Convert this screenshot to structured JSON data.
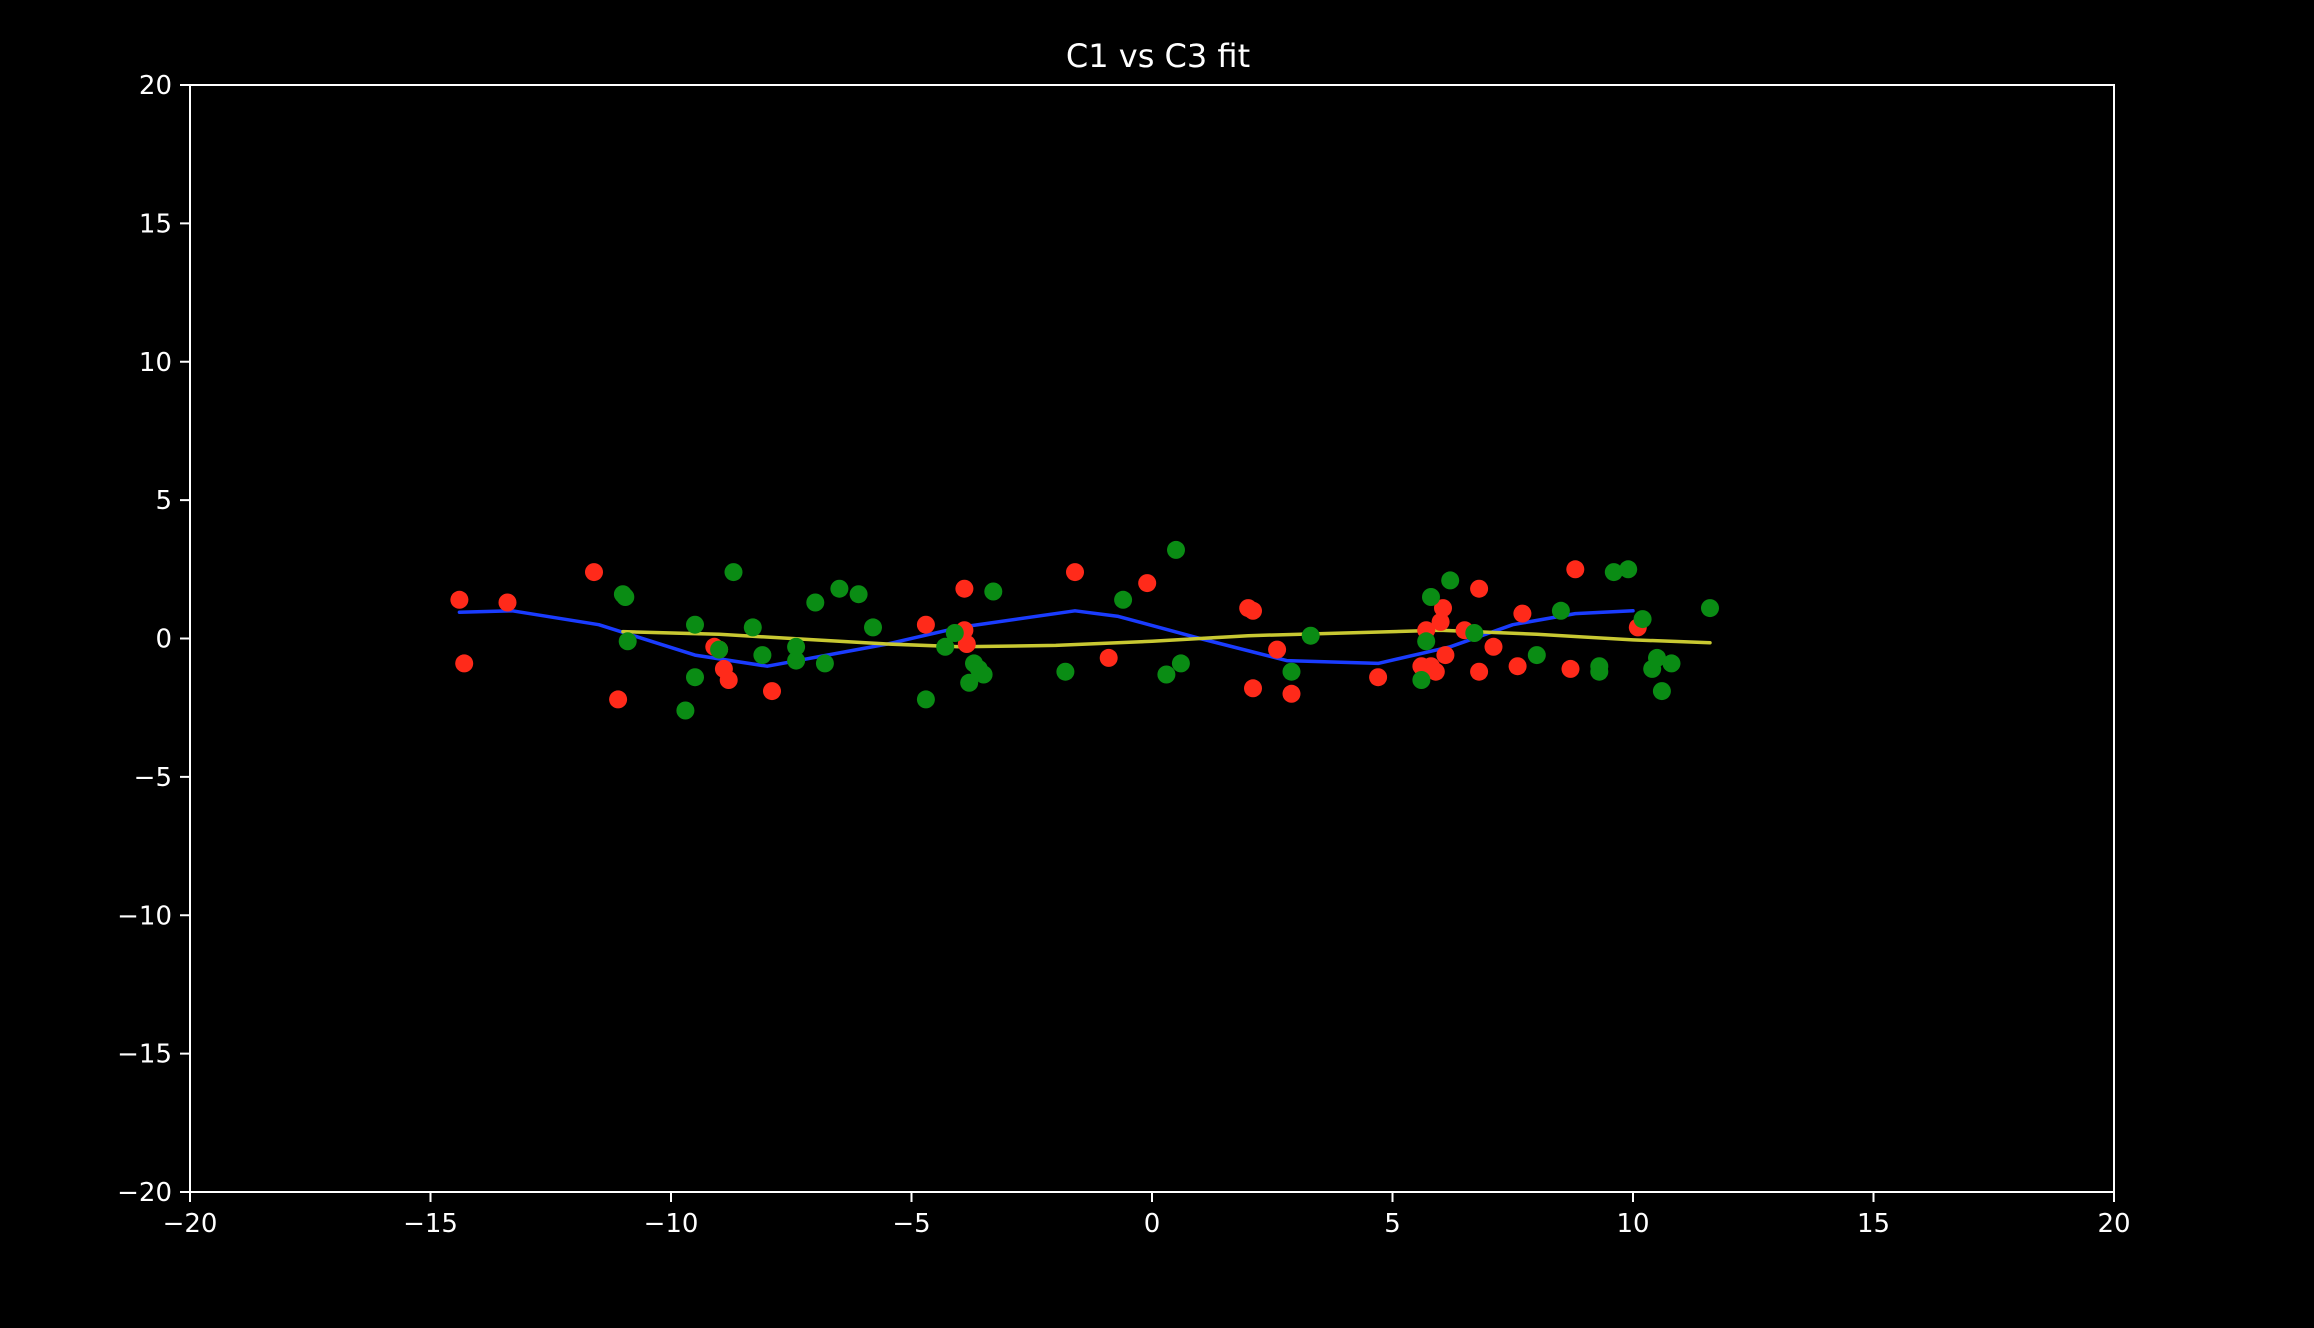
{
  "chart_data": {
    "type": "scatter",
    "title": "C1 vs C3 fit",
    "xlabel": "",
    "ylabel": "",
    "xlim": [
      -20,
      20
    ],
    "ylim": [
      -20,
      20
    ],
    "x_ticks": [
      -20,
      -15,
      -10,
      -5,
      0,
      5,
      10,
      15,
      20
    ],
    "y_ticks": [
      -20,
      -15,
      -10,
      -5,
      0,
      5,
      10,
      15,
      20
    ],
    "grid": false,
    "background": "#000000",
    "axis_color": "#ffffff",
    "series": [
      {
        "kind": "scatter",
        "color": "#ff2a1a",
        "points": [
          [
            -14.4,
            1.4
          ],
          [
            -14.3,
            -0.9
          ],
          [
            -13.4,
            1.3
          ],
          [
            -11.6,
            2.4
          ],
          [
            -11.1,
            -2.2
          ],
          [
            -9.1,
            -0.3
          ],
          [
            -9.0,
            -0.4
          ],
          [
            -8.9,
            -1.1
          ],
          [
            -8.8,
            -1.5
          ],
          [
            -7.9,
            -1.9
          ],
          [
            -4.7,
            0.5
          ],
          [
            -3.9,
            1.8
          ],
          [
            -3.9,
            0.3
          ],
          [
            -3.85,
            -0.2
          ],
          [
            -1.6,
            2.4
          ],
          [
            -0.9,
            -0.7
          ],
          [
            -0.1,
            2.0
          ],
          [
            2.0,
            1.1
          ],
          [
            2.1,
            1.0
          ],
          [
            2.1,
            -1.8
          ],
          [
            2.6,
            -0.4
          ],
          [
            2.9,
            -2.0
          ],
          [
            4.7,
            -1.4
          ],
          [
            5.6,
            -1.0
          ],
          [
            5.7,
            0.3
          ],
          [
            5.8,
            -1.0
          ],
          [
            5.9,
            -1.2
          ],
          [
            6.0,
            0.6
          ],
          [
            6.05,
            1.1
          ],
          [
            6.1,
            -0.6
          ],
          [
            6.5,
            0.3
          ],
          [
            6.8,
            -1.2
          ],
          [
            6.8,
            1.8
          ],
          [
            7.1,
            -0.3
          ],
          [
            7.6,
            -1.0
          ],
          [
            7.7,
            0.9
          ],
          [
            8.7,
            -1.1
          ],
          [
            8.8,
            2.5
          ],
          [
            10.1,
            0.4
          ]
        ]
      },
      {
        "kind": "scatter",
        "color": "#0a8c14",
        "points": [
          [
            -11.0,
            1.6
          ],
          [
            -10.95,
            1.5
          ],
          [
            -10.9,
            -0.1
          ],
          [
            -9.7,
            -2.6
          ],
          [
            -9.5,
            0.5
          ],
          [
            -9.5,
            -1.4
          ],
          [
            -9.0,
            -0.4
          ],
          [
            -8.7,
            2.4
          ],
          [
            -8.3,
            0.4
          ],
          [
            -8.1,
            -0.6
          ],
          [
            -7.4,
            -0.3
          ],
          [
            -7.4,
            -0.8
          ],
          [
            -7.0,
            1.3
          ],
          [
            -6.8,
            -0.9
          ],
          [
            -6.5,
            1.8
          ],
          [
            -6.1,
            1.6
          ],
          [
            -5.8,
            0.4
          ],
          [
            -4.7,
            -2.2
          ],
          [
            -4.3,
            -0.3
          ],
          [
            -4.1,
            0.2
          ],
          [
            -3.8,
            -1.6
          ],
          [
            -3.7,
            -0.9
          ],
          [
            -3.6,
            -1.1
          ],
          [
            -3.5,
            -1.3
          ],
          [
            -3.3,
            1.7
          ],
          [
            -1.8,
            -1.2
          ],
          [
            -0.6,
            1.4
          ],
          [
            0.3,
            -1.3
          ],
          [
            0.5,
            3.2
          ],
          [
            0.6,
            -0.9
          ],
          [
            2.9,
            -1.2
          ],
          [
            3.3,
            0.1
          ],
          [
            5.6,
            -1.5
          ],
          [
            5.7,
            -0.1
          ],
          [
            5.8,
            1.5
          ],
          [
            6.2,
            2.1
          ],
          [
            6.7,
            0.2
          ],
          [
            8.0,
            -0.6
          ],
          [
            8.5,
            1.0
          ],
          [
            9.3,
            -1.0
          ],
          [
            9.3,
            -1.2
          ],
          [
            9.6,
            2.4
          ],
          [
            9.9,
            2.5
          ],
          [
            10.2,
            0.7
          ],
          [
            10.4,
            -1.1
          ],
          [
            10.5,
            -0.7
          ],
          [
            10.6,
            -1.9
          ],
          [
            10.8,
            -0.9
          ],
          [
            11.6,
            1.1
          ]
        ]
      },
      {
        "kind": "line",
        "color": "#1a3cff",
        "points": [
          [
            -14.4,
            0.95
          ],
          [
            -13.3,
            1.0
          ],
          [
            -11.5,
            0.5
          ],
          [
            -9.5,
            -0.6
          ],
          [
            -8.0,
            -1.0
          ],
          [
            -5.5,
            -0.2
          ],
          [
            -4.0,
            0.4
          ],
          [
            -1.6,
            1.0
          ],
          [
            -0.7,
            0.8
          ],
          [
            1.0,
            0.0
          ],
          [
            2.8,
            -0.8
          ],
          [
            4.7,
            -0.9
          ],
          [
            6.2,
            -0.3
          ],
          [
            7.5,
            0.5
          ],
          [
            8.8,
            0.9
          ],
          [
            10.0,
            1.0
          ]
        ]
      },
      {
        "kind": "line",
        "color": "#c8c832",
        "points": [
          [
            -11.0,
            0.25
          ],
          [
            -9.0,
            0.15
          ],
          [
            -7.0,
            -0.05
          ],
          [
            -5.5,
            -0.2
          ],
          [
            -4.0,
            -0.3
          ],
          [
            -2.0,
            -0.25
          ],
          [
            0.0,
            -0.1
          ],
          [
            2.0,
            0.1
          ],
          [
            4.0,
            0.2
          ],
          [
            6.0,
            0.3
          ],
          [
            8.0,
            0.15
          ],
          [
            10.0,
            -0.05
          ],
          [
            11.6,
            -0.15
          ]
        ]
      }
    ]
  }
}
